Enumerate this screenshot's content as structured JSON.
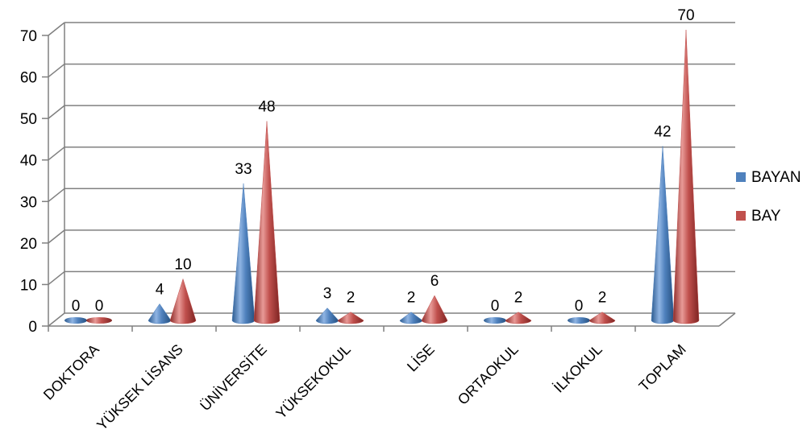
{
  "chart_data": {
    "type": "bar",
    "shape": "cone-3d",
    "categories": [
      "DOKTORA",
      "YÜKSEK LİSANS",
      "ÜNİVERSİTE",
      "YÜKSEKOKUL",
      "LİSE",
      "ORTAOKUL",
      "İLKOKUL",
      "TOPLAM"
    ],
    "series": [
      {
        "name": "BAYAN",
        "values": [
          0,
          4,
          33,
          3,
          2,
          0,
          0,
          42
        ],
        "color": "#4f81bd"
      },
      {
        "name": "BAY",
        "values": [
          0,
          10,
          48,
          2,
          6,
          2,
          2,
          70
        ],
        "color": "#c0504d"
      }
    ],
    "ylim": [
      0,
      70
    ],
    "yticks": [
      0,
      10,
      20,
      30,
      40,
      50,
      60,
      70
    ],
    "grid": true,
    "data_labels": true,
    "legend_position": "right"
  }
}
